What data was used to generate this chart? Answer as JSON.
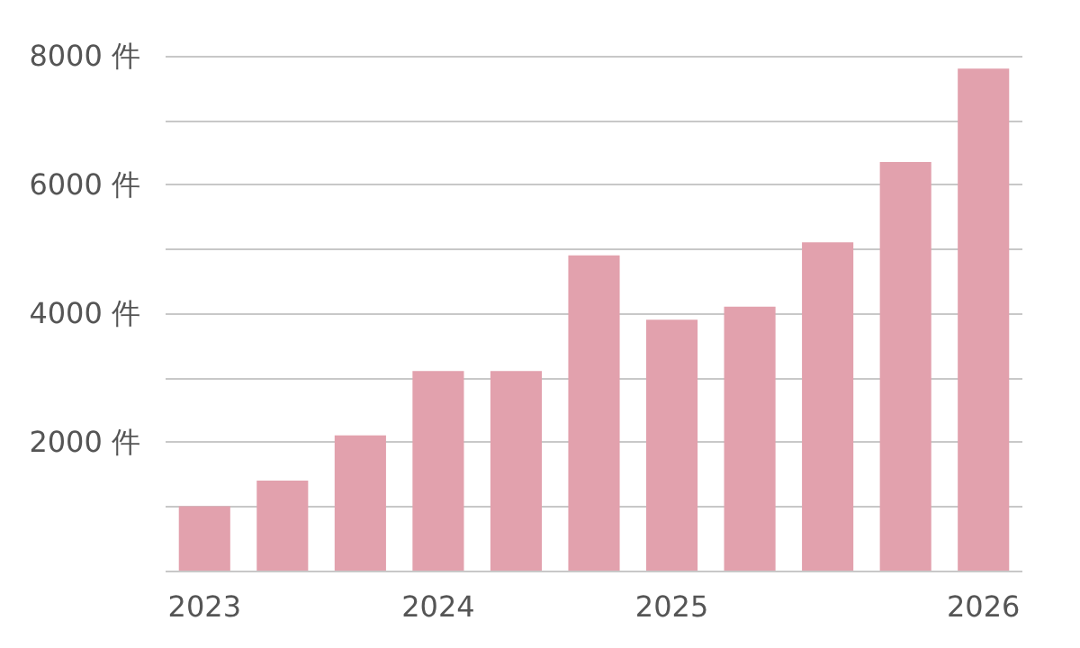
{
  "chart_data": {
    "type": "bar",
    "categories": [
      "2023",
      null,
      null,
      "2024",
      null,
      null,
      "2025",
      null,
      null,
      null,
      "2026"
    ],
    "values": [
      1000,
      1400,
      2100,
      3100,
      3100,
      4900,
      3900,
      4100,
      5100,
      6350,
      7800
    ],
    "color": "#e2a1ad",
    "ylim": [
      0,
      8000
    ],
    "yticks": [
      {
        "value": 0,
        "label": null
      },
      {
        "value": 1000,
        "label": null
      },
      {
        "value": 2000,
        "label": "2000 件"
      },
      {
        "value": 3000,
        "label": null
      },
      {
        "value": 4000,
        "label": "4000 件"
      },
      {
        "value": 5000,
        "label": null
      },
      {
        "value": 6000,
        "label": "6000 件"
      },
      {
        "value": 7000,
        "label": null
      },
      {
        "value": 8000,
        "label": "8000 件"
      }
    ],
    "grid": "y"
  }
}
